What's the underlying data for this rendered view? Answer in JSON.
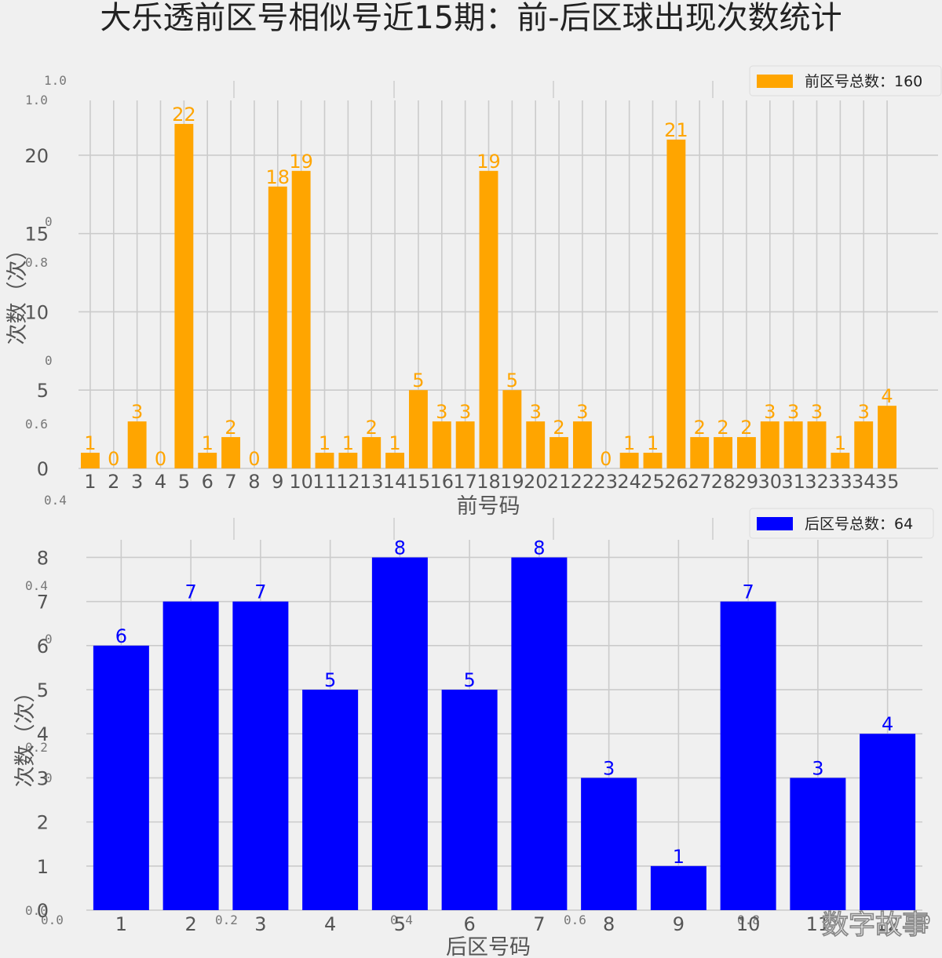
{
  "title": "大乐透前区号相似号近15期：前-后区球出现次数统计",
  "watermark": "数字故事",
  "ghost_axis_labels": [
    "1.0",
    "1.0",
    "0",
    "0.8",
    "0",
    "0.6",
    "0.4",
    "0.4",
    "0",
    "0.2",
    "0",
    "0.0",
    "0.0",
    "0.2",
    "0.4",
    "0.6",
    "0.8",
    "0"
  ],
  "chart_data": [
    {
      "type": "bar",
      "xlabel": "前号码",
      "ylabel": "次数（次）",
      "legend": "前区号总数：160",
      "legend_position": "top-right",
      "color": "#ffa500",
      "grid": true,
      "ylim": [
        0,
        23.5
      ],
      "yticks": [
        0,
        5,
        10,
        15,
        20
      ],
      "categories": [
        "1",
        "2",
        "3",
        "4",
        "5",
        "6",
        "7",
        "8",
        "9",
        "10",
        "11",
        "12",
        "13",
        "14",
        "15",
        "16",
        "17",
        "18",
        "19",
        "20",
        "21",
        "22",
        "23",
        "24",
        "25",
        "26",
        "27",
        "28",
        "29",
        "30",
        "31",
        "32",
        "33",
        "34",
        "35"
      ],
      "values": [
        1,
        0,
        3,
        0,
        22,
        1,
        2,
        0,
        18,
        19,
        1,
        1,
        2,
        1,
        5,
        3,
        3,
        19,
        5,
        3,
        2,
        3,
        0,
        1,
        1,
        21,
        2,
        2,
        2,
        3,
        3,
        3,
        1,
        3,
        4
      ]
    },
    {
      "type": "bar",
      "xlabel": "后区号码",
      "ylabel": "次数（次）",
      "legend": "后区号总数：64",
      "legend_position": "top-right",
      "color": "#0000ff",
      "grid": true,
      "ylim": [
        0,
        8.4
      ],
      "yticks": [
        0,
        1,
        2,
        3,
        4,
        5,
        6,
        7,
        8
      ],
      "categories": [
        "1",
        "2",
        "3",
        "4",
        "5",
        "6",
        "7",
        "8",
        "9",
        "10",
        "11",
        "12"
      ],
      "values": [
        6,
        7,
        7,
        5,
        8,
        5,
        8,
        3,
        1,
        7,
        3,
        4
      ]
    }
  ]
}
